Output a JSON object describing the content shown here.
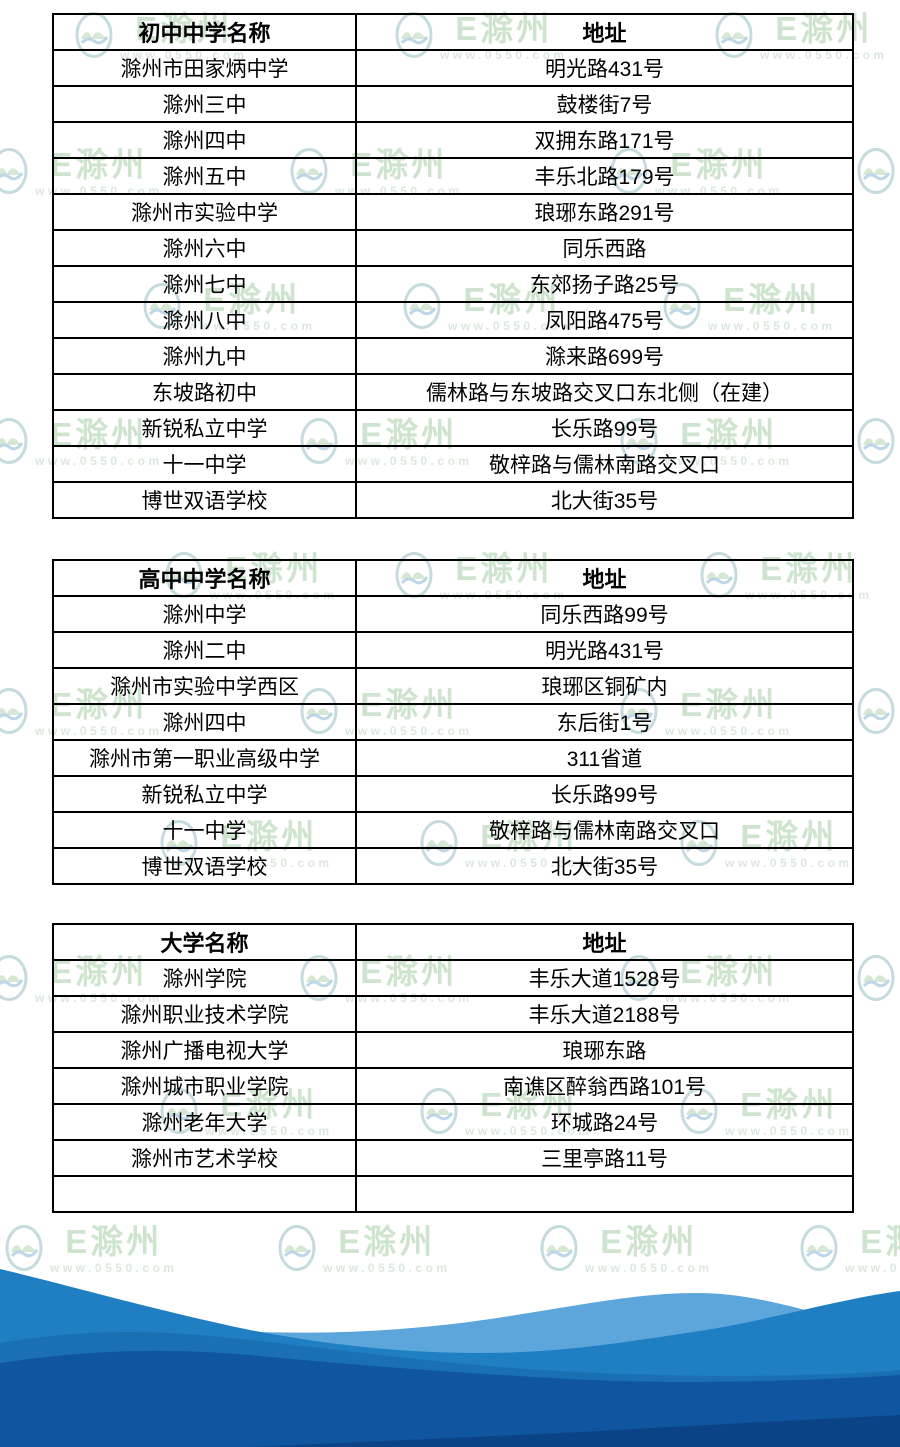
{
  "watermark": {
    "brand": "E滁州",
    "url": "www.0550.com"
  },
  "tables": [
    {
      "name": "junior-high",
      "headers": [
        "初中中学名称",
        "地址"
      ],
      "rows": [
        [
          "滁州市田家炳中学",
          "明光路431号"
        ],
        [
          "滁州三中",
          "鼓楼街7号"
        ],
        [
          "滁州四中",
          "双拥东路171号"
        ],
        [
          "滁州五中",
          "丰乐北路179号"
        ],
        [
          "滁州市实验中学",
          "琅琊东路291号"
        ],
        [
          "滁州六中",
          "同乐西路"
        ],
        [
          "滁州七中",
          "东郊扬子路25号"
        ],
        [
          "滁州八中",
          "凤阳路475号"
        ],
        [
          "滁州九中",
          "滁来路699号"
        ],
        [
          "东坡路初中",
          "儒林路与东坡路交叉口东北侧（在建）"
        ],
        [
          "新锐私立中学",
          "长乐路99号"
        ],
        [
          "十一中学",
          "敬梓路与儒林南路交叉口"
        ],
        [
          "博世双语学校",
          "北大街35号"
        ]
      ]
    },
    {
      "name": "senior-high",
      "headers": [
        "高中中学名称",
        "地址"
      ],
      "rows": [
        [
          "滁州中学",
          "同乐西路99号"
        ],
        [
          "滁州二中",
          "明光路431号"
        ],
        [
          "滁州市实验中学西区",
          "琅琊区铜矿内"
        ],
        [
          "滁州四中",
          "东后街1号"
        ],
        [
          "滁州市第一职业高级中学",
          "311省道"
        ],
        [
          "新锐私立中学",
          "长乐路99号"
        ],
        [
          "十一中学",
          "敬梓路与儒林南路交叉口"
        ],
        [
          "博世双语学校",
          "北大街35号"
        ]
      ]
    },
    {
      "name": "university",
      "headers": [
        "大学名称",
        "地址"
      ],
      "rows": [
        [
          "滁州学院",
          "丰乐大道1528号"
        ],
        [
          "滁州职业技术学院",
          "丰乐大道2188号"
        ],
        [
          "滁州广播电视大学",
          "琅琊东路"
        ],
        [
          "滁州城市职业学院",
          "南谯区醉翁西路101号"
        ],
        [
          "滁州老年大学",
          "环城路24号"
        ],
        [
          "滁州市艺术学校",
          "三里亭路11号"
        ],
        [
          "",
          ""
        ]
      ]
    }
  ],
  "colors": {
    "table_border": "#000000",
    "watermark_green": "#cfe4cf",
    "watermark_logo_ring": "#c5dbde",
    "wave_light": "#5CA6DB",
    "wave_medium": "#1F7FC2",
    "wave_mid_dark": "#1B70B4",
    "wave_dark": "#0F55A0",
    "wave_navy": "#0B4486"
  }
}
